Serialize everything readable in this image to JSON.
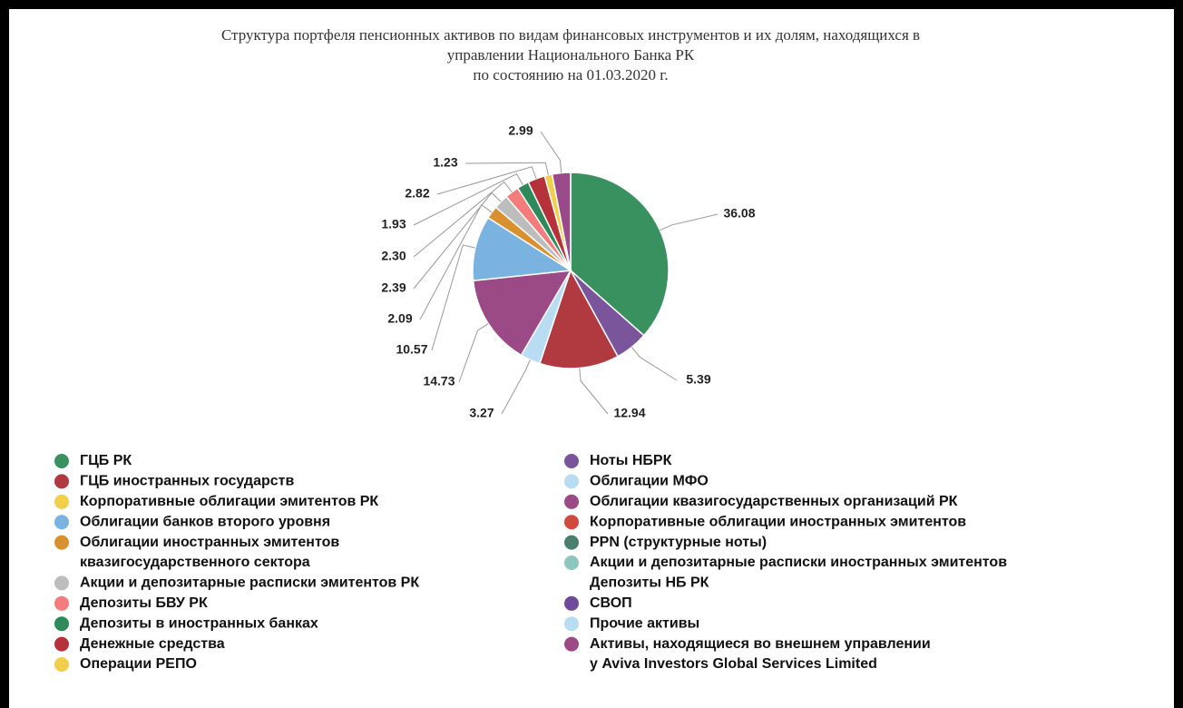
{
  "chart_data": {
    "type": "pie",
    "title": [
      "Структура портфеля пенсионных активов по видам финансовых инструментов и их долям, находящихся в",
      "управлении Национального Банка РК",
      "по состоянию на 01.03.2020 г."
    ],
    "values": [
      36.08,
      5.39,
      12.94,
      3.27,
      14.73,
      10.57,
      2.09,
      2.39,
      2.3,
      1.93,
      2.82,
      1.23,
      2.99
    ],
    "value_labels": [
      "36.08",
      "5.39",
      "12.94",
      "3.27",
      "14.73",
      "10.57",
      "2.09",
      "2.39",
      "2.30",
      "1.93",
      "2.82",
      "1.23",
      "2.99"
    ],
    "colors": [
      "#3a9160",
      "#7b559c",
      "#b03a3f",
      "#b8dcf2",
      "#9b4a86",
      "#7ab3e0",
      "#d9912f",
      "#bdbdbd",
      "#f47c7c",
      "#2e8a5a",
      "#b5323b",
      "#f2cf4a",
      "#9a4a8a"
    ],
    "legend": [
      {
        "lines": [
          "ГЦБ РК"
        ],
        "color": "#3a9160"
      },
      {
        "lines": [
          "ГЦБ иностранных государств"
        ],
        "color": "#b03a3f"
      },
      {
        "lines": [
          "Корпоративные облигации эмитентов РК"
        ],
        "color": "#f2cf4a"
      },
      {
        "lines": [
          "Облигации банков второго уровня"
        ],
        "color": "#7ab3e0"
      },
      {
        "lines": [
          "Облигации иностранных эмитентов",
          "квазигосударственного сектора"
        ],
        "color": "#d9912f"
      },
      {
        "lines": [
          "Акции и депозитарные расписки эмитентов РК"
        ],
        "color": "#bdbdbd"
      },
      {
        "lines": [
          "Депозиты БВУ РК"
        ],
        "color": "#f47c7c"
      },
      {
        "lines": [
          "Депозиты в иностранных банках"
        ],
        "color": "#2e8a5a"
      },
      {
        "lines": [
          "Денежные средства"
        ],
        "color": "#b5323b"
      },
      {
        "lines": [
          "Операции РЕПО"
        ],
        "color": "#f2cf4a"
      },
      {
        "lines": [
          "Ноты НБРК"
        ],
        "color": "#7b559c"
      },
      {
        "lines": [
          "Облигации МФО"
        ],
        "color": "#b8dcf2"
      },
      {
        "lines": [
          "Облигации квазигосударственных организаций РК"
        ],
        "color": "#9b4a86"
      },
      {
        "lines": [
          "Корпоративные облигации иностранных эмитентов"
        ],
        "color": "#d14a3e"
      },
      {
        "lines": [
          "PPN (структурные ноты)"
        ],
        "color": "#4a7f6e"
      },
      {
        "lines": [
          "Акции и депозитарные расписки иностранных эмитентов"
        ],
        "color": "#8cc6bf"
      },
      {
        "lines": [
          "Депозиты НБ РК"
        ],
        "color": null
      },
      {
        "lines": [
          "СВОП"
        ],
        "color": "#6f4a9a"
      },
      {
        "lines": [
          "Прочие активы"
        ],
        "color": "#b8dcf2"
      },
      {
        "lines": [
          "Активы, находящиеся во внешнем управлении",
          "у Aviva Investors Global Services Limited"
        ],
        "color": "#9b4a86"
      }
    ]
  }
}
